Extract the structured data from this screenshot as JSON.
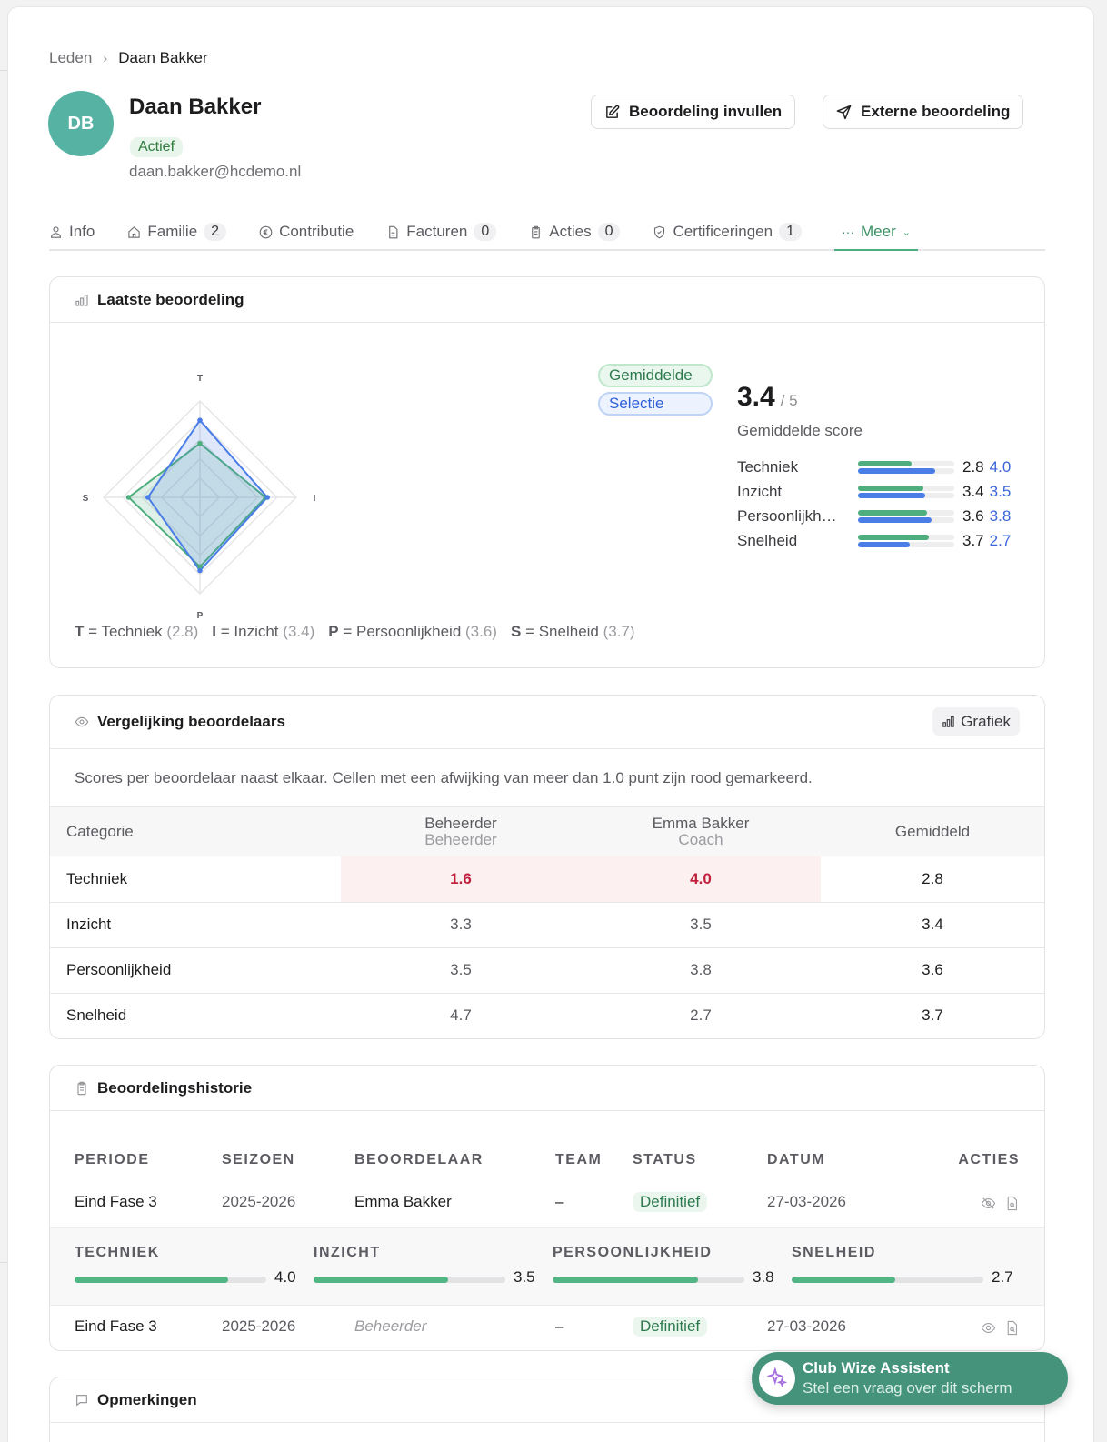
{
  "breadcrumb": {
    "parent": "Leden",
    "current": "Daan Bakker"
  },
  "member": {
    "initials": "DB",
    "name": "Daan Bakker",
    "status": "Actief",
    "email": "daan.bakker@hcdemo.nl",
    "avatar_color": "#56b3a4"
  },
  "actions": {
    "fill_review": "Beoordeling invullen",
    "external_review": "Externe beoordeling"
  },
  "tabs": [
    {
      "label": "Info",
      "icon": "user-icon"
    },
    {
      "label": "Familie",
      "count": "2",
      "icon": "home-icon"
    },
    {
      "label": "Contributie",
      "icon": "euro-icon"
    },
    {
      "label": "Facturen",
      "count": "0",
      "icon": "document-icon"
    },
    {
      "label": "Acties",
      "count": "0",
      "icon": "clipboard-icon"
    },
    {
      "label": "Certificeringen",
      "count": "1",
      "icon": "shield-check-icon"
    },
    {
      "label": "Meer",
      "icon": "ellipsis-icon",
      "active": true
    }
  ],
  "latest_review": {
    "title": "Laatste beoordeling",
    "legend": {
      "average": "Gemiddelde",
      "selection": "Selectie"
    },
    "score": "3.4",
    "score_max": "/ 5",
    "score_label": "Gemiddelde score",
    "axis_labels": {
      "T": "T",
      "I": "I",
      "P": "P",
      "S": "S"
    },
    "rows": [
      {
        "label": "Techniek",
        "avg": "2.8",
        "sel": "4.0"
      },
      {
        "label": "Inzicht",
        "avg": "3.4",
        "sel": "3.5"
      },
      {
        "label": "Persoonlijkheid",
        "label_short": "Persoonlijkh…",
        "avg": "3.6",
        "sel": "3.8"
      },
      {
        "label": "Snelheid",
        "avg": "3.7",
        "sel": "2.7"
      }
    ],
    "key": [
      {
        "abbr": "T",
        "text": "= Techniek",
        "val": "(2.8)"
      },
      {
        "abbr": "I",
        "text": "= Inzicht",
        "val": "(3.4)"
      },
      {
        "abbr": "P",
        "text": "= Persoonlijkheid",
        "val": "(3.6)"
      },
      {
        "abbr": "S",
        "text": "= Snelheid",
        "val": "(3.7)"
      }
    ],
    "colors": {
      "average": "#4fae7d",
      "selection": "#4a7de6"
    }
  },
  "chart_data": {
    "type": "radar",
    "title": "Laatste beoordeling",
    "categories": [
      "Techniek",
      "Inzicht",
      "Persoonlijkheid",
      "Snelheid"
    ],
    "axis_labels": [
      "T",
      "I",
      "P",
      "S"
    ],
    "range": [
      0,
      5
    ],
    "series": [
      {
        "name": "Gemiddelde",
        "values": [
          2.8,
          3.4,
          3.6,
          3.7
        ],
        "color": "#4fae7d"
      },
      {
        "name": "Selectie",
        "values": [
          4.0,
          3.5,
          3.8,
          2.7
        ],
        "color": "#4a7de6"
      }
    ]
  },
  "comparison": {
    "title": "Vergelijking beoordelaars",
    "chart_button": "Grafiek",
    "description": "Scores per beoordelaar naast elkaar. Cellen met een afwijking van meer dan 1.0 punt zijn rood gemarkeerd.",
    "columns": [
      {
        "name": "Categorie"
      },
      {
        "name": "Beheerder",
        "role": "Beheerder"
      },
      {
        "name": "Emma Bakker",
        "role": "Coach"
      },
      {
        "name": "Gemiddeld"
      }
    ],
    "rows": [
      {
        "category": "Techniek",
        "beheerder": "1.6",
        "emma": "4.0",
        "avg": "2.8",
        "deviation": true
      },
      {
        "category": "Inzicht",
        "beheerder": "3.3",
        "emma": "3.5",
        "avg": "3.4"
      },
      {
        "category": "Persoonlijkheid",
        "beheerder": "3.5",
        "emma": "3.8",
        "avg": "3.6"
      },
      {
        "category": "Snelheid",
        "beheerder": "4.7",
        "emma": "2.7",
        "avg": "3.7"
      }
    ]
  },
  "history": {
    "title": "Beoordelingshistorie",
    "columns": [
      "PERIODE",
      "SEIZOEN",
      "BEOORDELAAR",
      "TEAM",
      "STATUS",
      "DATUM",
      "ACTIES"
    ],
    "rows": [
      {
        "period": "Eind Fase 3",
        "season": "2025-2026",
        "reviewer": "Emma Bakker",
        "team": "–",
        "status": "Definitief",
        "date": "27-03-2026",
        "expanded": true
      },
      {
        "period": "Eind Fase 3",
        "season": "2025-2026",
        "reviewer": "Beheerder",
        "team": "–",
        "status": "Definitief",
        "date": "27-03-2026"
      }
    ],
    "detail": [
      {
        "label": "TECHNIEK",
        "value": "4.0",
        "pct": 80
      },
      {
        "label": "INZICHT",
        "value": "3.5",
        "pct": 70
      },
      {
        "label": "PERSOONLIJKHEID",
        "value": "3.8",
        "pct": 76
      },
      {
        "label": "SNELHEID",
        "value": "2.7",
        "pct": 54
      }
    ]
  },
  "remarks": {
    "title": "Opmerkingen"
  },
  "assistant": {
    "title": "Club Wize Assistent",
    "subtitle": "Stel een vraag over dit scherm"
  }
}
